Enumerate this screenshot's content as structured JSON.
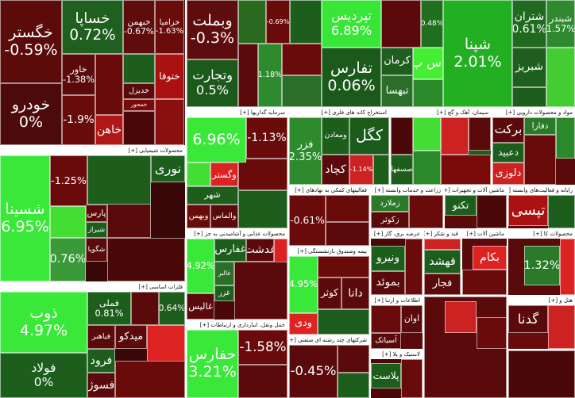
{
  "chart_data": {
    "type": "treemap",
    "groups": [
      {
        "tiles": [
          {
            "label": "خگستر",
            "value": -0.59,
            "value_label": "-0.59%",
            "color": "#5c0b0b"
          },
          {
            "label": "خودرو",
            "value": 0,
            "value_label": "0%",
            "color": "#4d0a0a"
          },
          {
            "label": "خساپا",
            "value": 0.72,
            "value_label": "0.72%",
            "color": "#1f5f1f"
          },
          {
            "label": "خبهمن",
            "value": -0.67,
            "value_label": "-0.67%",
            "color": "#5e0c0c"
          },
          {
            "label": "خزامیا",
            "value": -1.63,
            "value_label": "-1.63%",
            "color": "#6a0c0c"
          },
          {
            "label": "خاور",
            "value": -1.38,
            "value_label": "-1.38%",
            "color": "#5a0a0a"
          },
          {
            "label": "ختوقا",
            "color": "#aa1111"
          },
          {
            "label": "خدیزل",
            "color": "#5a0a0a"
          },
          {
            "label": "خمحور",
            "color": "#7a0a0a"
          },
          {
            "label": "خاهن",
            "color": "#b01818"
          },
          {
            "value": -1.9,
            "value_label": "-1.9%",
            "color": "#6a0b0b"
          }
        ]
      },
      {
        "tiles": [
          {
            "label": "وبملت",
            "value": -0.3,
            "value_label": "-0.3%",
            "color": "#5d0d0d"
          },
          {
            "label": "وتجارت",
            "value": 0.5,
            "value_label": "0.5%",
            "color": "#1c5a1c"
          },
          {
            "value": -0.69,
            "value_label": "-0.69%",
            "color": "#6a0b0b"
          },
          {
            "value": 1.18,
            "value_label": "1.18%",
            "color": "#2e8a2e"
          }
        ]
      },
      {
        "tiles": [
          {
            "label": "تپردیس",
            "value": 6.89,
            "value_label": "6.89%",
            "color": "#37e637"
          },
          {
            "label": "تفارس",
            "value": 0.06,
            "value_label": "0.06%",
            "color": "#1b5a1b"
          },
          {
            "label": "کرمان",
            "color": "#1e5e1e"
          },
          {
            "label": "تبهسا",
            "color": "#2a6e2a"
          },
          {
            "label": "اس پ",
            "color": "#44ee33"
          },
          {
            "value": 0.48,
            "value_label": "0.48%",
            "color": "#1f6f1f"
          },
          {
            "label": "شپنا",
            "value": 2.01,
            "value_label": "2.01%",
            "color": "#22b022"
          },
          {
            "label": "شتران",
            "value": 0.61,
            "value_label": "0.61%",
            "color": "#1f6a1f"
          },
          {
            "label": "شبندر",
            "value": 1.57,
            "value_label": "1.57%",
            "color": "#2f8a2f"
          },
          {
            "label": "شبریز",
            "color": "#1e5e1e"
          }
        ]
      },
      {
        "name": "سرمایه گذاریها [+]",
        "tiles": [
          {
            "value": 6.96,
            "value_label": "6.96%",
            "color": "#3ae83a"
          },
          {
            "value": -1.13,
            "value_label": "-1.13%",
            "color": "#6a0b0b"
          },
          {
            "label": "وگستر",
            "color": "#dd2222"
          },
          {
            "label": "شهر",
            "color": "#1d5e1d"
          },
          {
            "label": "وبهمن",
            "color": "#6a0b0b"
          },
          {
            "label": "والماس",
            "color": "#5b0b0b"
          }
        ]
      },
      {
        "name": "استخراج کانه های فلزی [+]",
        "tiles": [
          {
            "label": "فزر",
            "value": 2.35,
            "value_label": "2.35%",
            "color": "#2d8a2d"
          },
          {
            "label": "ومعادن",
            "color": "#1d5e1d"
          },
          {
            "label": "کگل",
            "color": "#1b5a1b"
          },
          {
            "label": "کچاد",
            "color": "#5a0a0a"
          },
          {
            "value": -1.14,
            "value_label": "-1.14%",
            "color": "#cc2222"
          }
        ]
      },
      {
        "name": "سیمان، آهک و گچ [+]",
        "tiles": [
          {
            "label": "صسفها",
            "color": "#1d5e1d"
          }
        ]
      },
      {
        "name": "مواد و محصولات دارویی [+]",
        "tiles": [
          {
            "label": "برکت",
            "color": "#5a0a0a"
          },
          {
            "label": "دفارا",
            "color": "#2a7a2a"
          },
          {
            "label": "دعبید",
            "color": "#1d5e1d"
          },
          {
            "label": "دلوزی",
            "color": "#cc2222"
          }
        ]
      },
      {
        "name": "محصولات شیمیایی [+]",
        "tiles": [
          {
            "label": "شسینا",
            "value": 6.95,
            "value_label": "6.95%",
            "color": "#3ae83a"
          },
          {
            "value": -1.25,
            "value_label": "-1.25%",
            "color": "#6a0b0b"
          },
          {
            "label": "نوری",
            "color": "#1d5e1d"
          },
          {
            "label": "پارس",
            "color": "#5a0a0a"
          },
          {
            "label": "شیراز",
            "color": "#1d5e1d"
          },
          {
            "label": "شگویا",
            "color": "#5a0a0a"
          },
          {
            "value": 0.76,
            "value_label": "0.76%",
            "color": "#3a9a3a"
          }
        ]
      },
      {
        "name": "فلزات اساسی [+]",
        "tiles": [
          {
            "label": "ذوب",
            "value": 4.97,
            "value_label": "4.97%",
            "color": "#3ae83a"
          },
          {
            "label": "فولاد",
            "value": 0,
            "value_label": "0%",
            "color": "#1d5e1d"
          },
          {
            "label": "فملی",
            "value": 0.81,
            "value_label": "0.81%",
            "color": "#1d5e1d"
          },
          {
            "value": 0.64,
            "value_label": "0.64%",
            "color": "#1d5e1d"
          },
          {
            "label": "میدکو",
            "color": "#5a0a0a"
          },
          {
            "label": "فباهنر",
            "color": "#5a0a0a"
          },
          {
            "label": "فرود",
            "color": "#1d5e1d"
          },
          {
            "label": "فسوژ",
            "color": "#5a0a0a"
          }
        ]
      },
      {
        "name": "محصولات غذایی و آشامیدنی به جز [+]",
        "tiles": [
          {
            "value": 4.92,
            "value_label": "4.92%",
            "color": "#3ae83a"
          },
          {
            "label": "غفارس",
            "color": "#1d5e1d"
          },
          {
            "label": "غدشت",
            "color": "#5a0a0a"
          },
          {
            "label": "غالبر",
            "color": "#2a6e2a"
          },
          {
            "label": "غزر",
            "color": "#1d5e1d"
          },
          {
            "label": "غالیس",
            "color": "#5a0a0a"
          }
        ]
      },
      {
        "name": "حمل ونقل، انبارداری و ارتباطات [+]",
        "tiles": [
          {
            "label": "حفارس",
            "value": 3.21,
            "value_label": "3.21%",
            "color": "#3ae83a"
          },
          {
            "value": -1.58,
            "value_label": "-1.58%",
            "color": "#6a0b0b"
          }
        ]
      },
      {
        "name": "فعالیتهای کمکی به نهادهای [+]",
        "tiles": [
          {
            "value": -0.61,
            "value_label": "-0.61%",
            "color": "#6a0b0b"
          }
        ]
      },
      {
        "name": "بیمه وصندوق بازنشستگی [+]",
        "tiles": [
          {
            "value": 4.95,
            "value_label": "4.95%",
            "color": "#3ae83a"
          },
          {
            "label": "کوثر",
            "color": "#5a0a0a"
          },
          {
            "label": "دانا",
            "color": "#5a0a0a"
          },
          {
            "label": "ودی",
            "color": "#dd2222"
          }
        ]
      },
      {
        "name": "شرکتهای چند رشته ای صنعتی [+]",
        "tiles": [
          {
            "value": -0.45,
            "value_label": "-0.45%",
            "color": "#5a0a0a"
          }
        ]
      },
      {
        "name": "زراعت و خدمات وابسته [+]",
        "tiles": [
          {
            "label": "زملارد",
            "color": "#2a7a2a"
          },
          {
            "label": "زکوثر",
            "color": "#5a0a0a"
          }
        ]
      },
      {
        "name": "ماشین آلات و تجهیزات [+]",
        "tiles": [
          {
            "label": "تکنو",
            "color": "#1d5e1d"
          }
        ]
      },
      {
        "name": "رایانه و فعالیت‌های وابسته [+]",
        "tiles": [
          {
            "label": "تپسی",
            "color": "#aa1111"
          }
        ]
      },
      {
        "name": "عرضه برق، گاز [+]",
        "tiles": [
          {
            "label": "ونیرو",
            "color": "#1d5e1d"
          },
          {
            "label": "بموئد",
            "color": "#5a0a0a"
          }
        ]
      },
      {
        "name": "قند و شکر [+]",
        "tiles": [
          {
            "label": "قهشد",
            "color": "#1d5e1d"
          },
          {
            "label": "فجار",
            "color": "#5a0a0a"
          }
        ]
      },
      {
        "name": "ماشین آلات [+]",
        "tiles": [
          {
            "label": "بکام",
            "color": "#dd2222"
          }
        ]
      },
      {
        "name": "محصولات کا [+]",
        "tiles": [
          {
            "value": 1.32,
            "value_label": "1.32%",
            "color": "#2a7a2a"
          }
        ]
      },
      {
        "name": "اطلاعات و ارتبا [+]",
        "tiles": [
          {
            "label": "اوان",
            "color": "#5a0a0a"
          },
          {
            "label": "آسیاتک",
            "color": "#5a0a0a"
          }
        ]
      },
      {
        "name": "لاستیک و پلا [+]",
        "tiles": [
          {
            "label": "پلاست",
            "color": "#1d5e1d"
          }
        ]
      },
      {
        "name": "هتل و [+]",
        "tiles": [
          {
            "label": "گدنا",
            "color": "#5a0a0a"
          }
        ]
      }
    ]
  }
}
